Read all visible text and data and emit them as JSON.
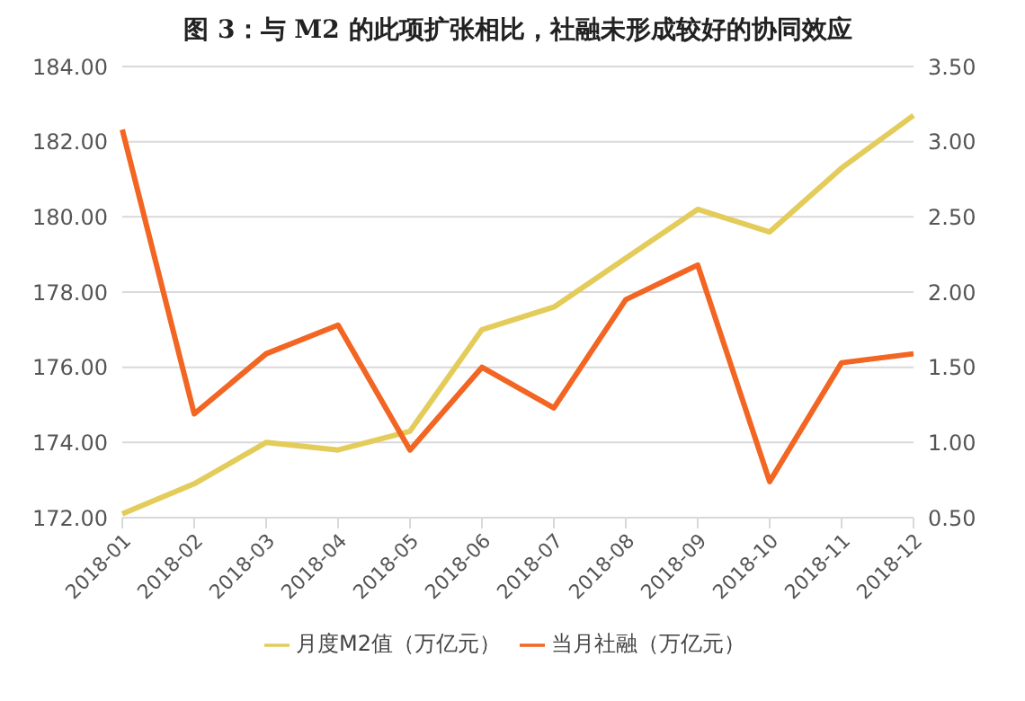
{
  "chart_data": {
    "type": "line",
    "title": "图 3：与 M2 的此项扩张相比，社融未形成较好的协同效应",
    "categories": [
      "2018-01",
      "2018-02",
      "2018-03",
      "2018-04",
      "2018-05",
      "2018-06",
      "2018-07",
      "2018-08",
      "2018-09",
      "2018-10",
      "2018-11",
      "2018-12"
    ],
    "series": [
      {
        "name": "月度M2值（万亿元）",
        "color": "#e3cc5a",
        "values": [
          172.1,
          172.9,
          174.0,
          173.8,
          174.3,
          177.0,
          177.6,
          178.9,
          180.2,
          179.6,
          181.3,
          182.7
        ]
      },
      {
        "name": "当月社融（万亿元）",
        "color": "#f26522",
        "axis": "y2",
        "values": [
          3.08,
          1.19,
          1.59,
          1.78,
          0.95,
          1.5,
          1.23,
          1.95,
          2.18,
          0.74,
          1.53,
          1.59
        ]
      }
    ],
    "ylim": [
      172,
      184
    ],
    "yticks": [
      {
        "value": 172,
        "label": "172.00"
      },
      {
        "value": 174,
        "label": "174.00"
      },
      {
        "value": 176,
        "label": "176.00"
      },
      {
        "value": 178,
        "label": "178.00"
      },
      {
        "value": 180,
        "label": "180.00"
      },
      {
        "value": 182,
        "label": "182.00"
      },
      {
        "value": 184,
        "label": "184.00"
      }
    ],
    "y2lim": [
      0.5,
      3.5
    ],
    "y2ticks": [
      {
        "value": 0.5,
        "label": "0.50"
      },
      {
        "value": 1,
        "label": "1.00"
      },
      {
        "value": 1.5,
        "label": "1.50"
      },
      {
        "value": 2,
        "label": "2.00"
      },
      {
        "value": 2.5,
        "label": "2.50"
      },
      {
        "value": 3,
        "label": "3.00"
      },
      {
        "value": 3.5,
        "label": "3.50"
      }
    ],
    "grid": "y",
    "legend": "bottom",
    "marker": "none",
    "line_style": "solid"
  }
}
